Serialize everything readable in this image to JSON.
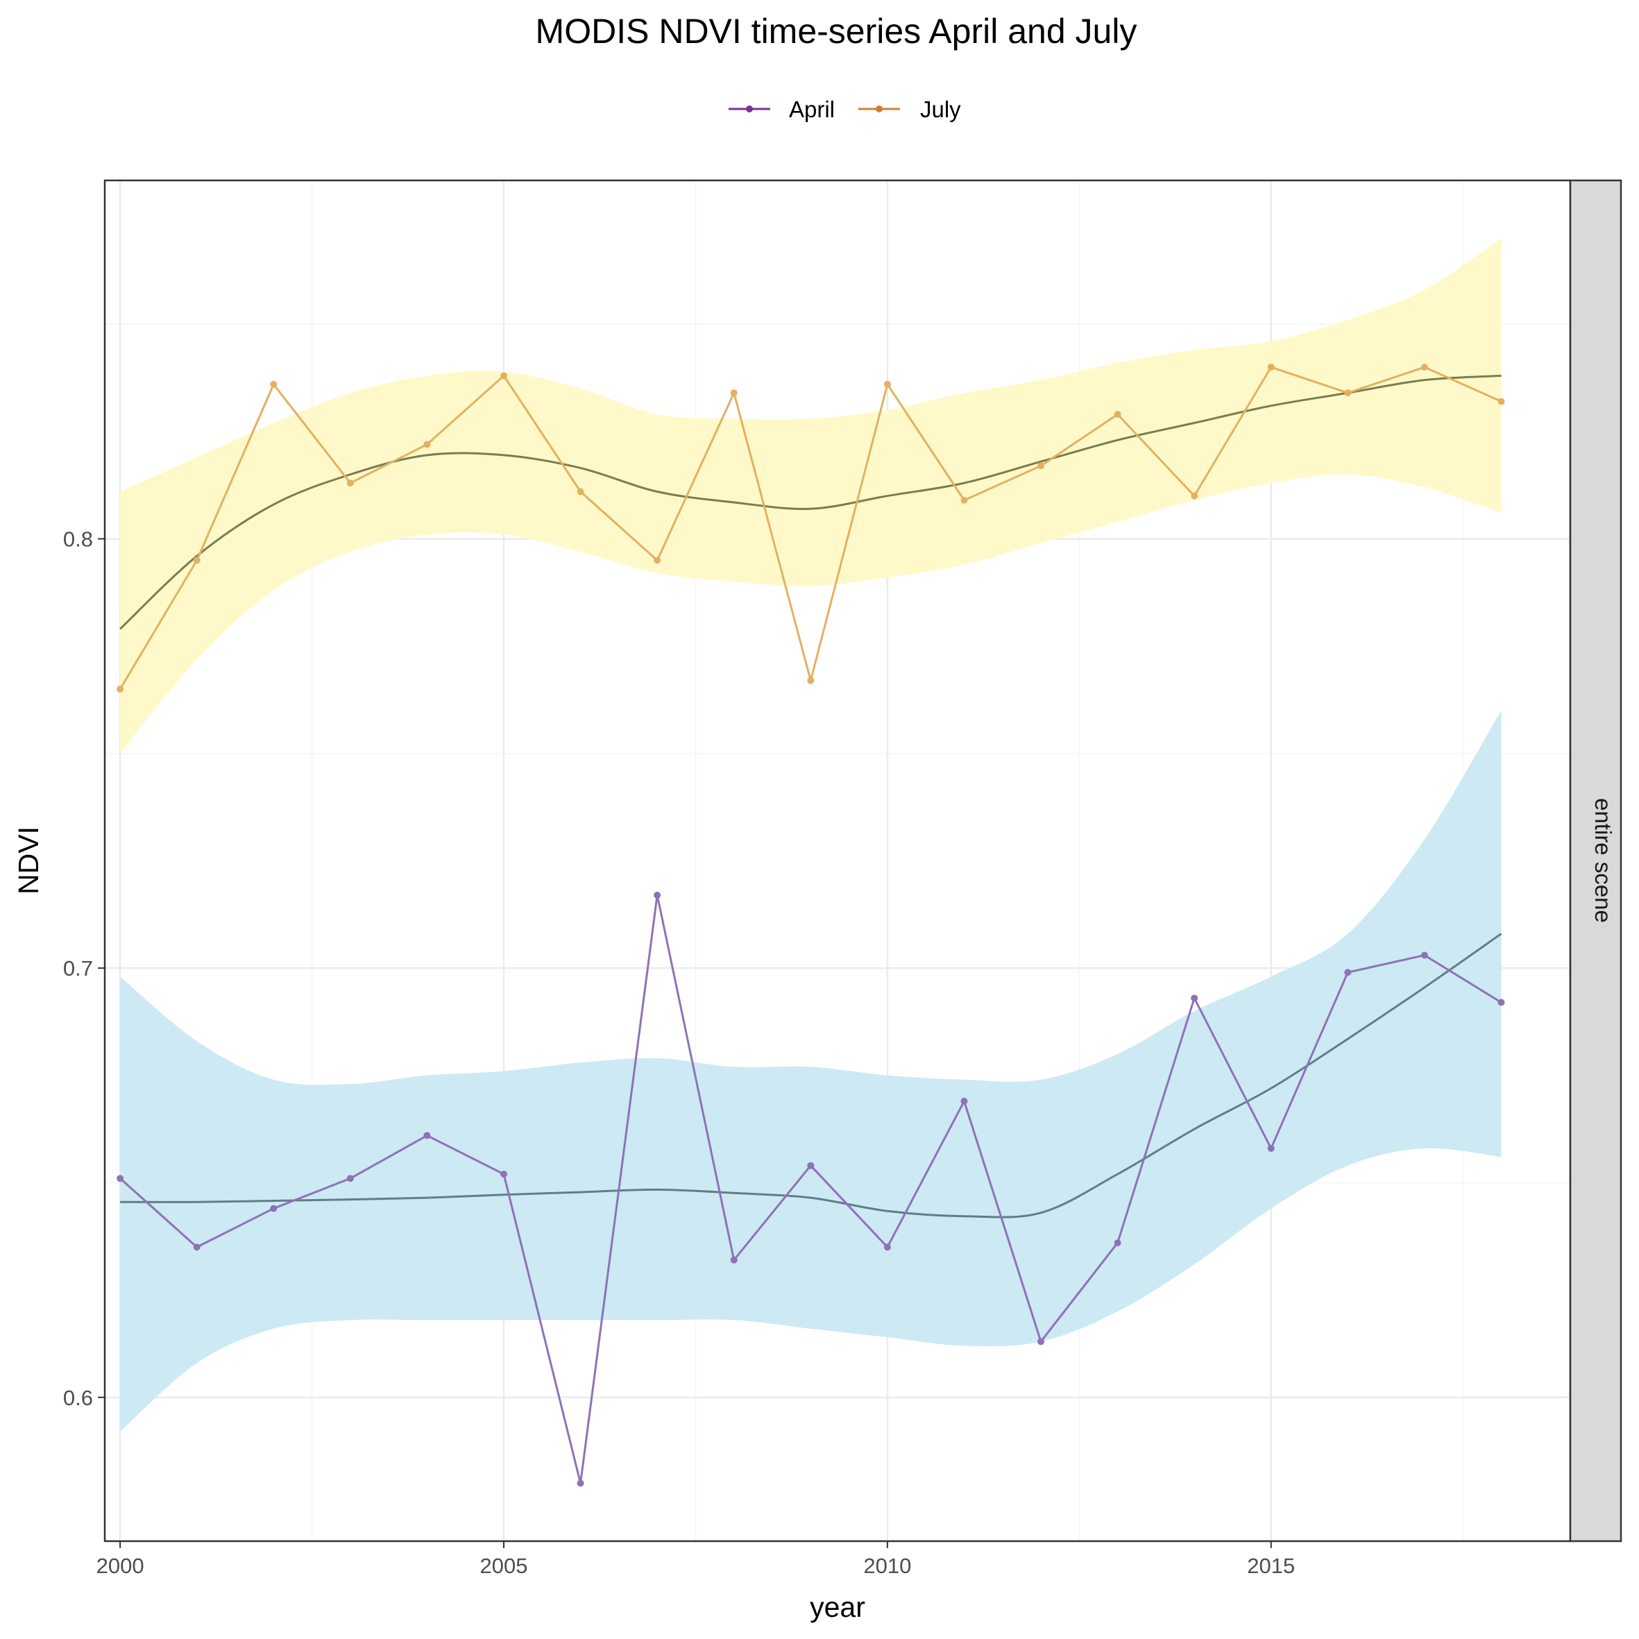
{
  "chart_data": {
    "type": "line",
    "title": "MODIS NDVI time-series April and July",
    "xlabel": "year",
    "ylabel": "NDVI",
    "facet_label": "entire scene",
    "xlim": [
      1999.8,
      2018.9
    ],
    "ylim": [
      0.5665,
      0.8835
    ],
    "x_ticks": [
      2000,
      2005,
      2010,
      2015
    ],
    "x_tick_labels": [
      "2000",
      "2005",
      "2010",
      "2015"
    ],
    "x_minor_ticks": [
      2002.5,
      2007.5,
      2012.5,
      2017.5
    ],
    "y_ticks": [
      0.6,
      0.7,
      0.8
    ],
    "y_tick_labels": [
      "0.6",
      "0.7",
      "0.8"
    ],
    "y_minor_ticks": [
      0.65,
      0.75,
      0.85
    ],
    "grid": true,
    "legend": {
      "position": "top",
      "entries": [
        "April",
        "July"
      ]
    },
    "series": [
      {
        "name": "April",
        "color": "#7b3294",
        "line_color": "#8e72b5",
        "x": [
          2000,
          2001,
          2002,
          2003,
          2004,
          2005,
          2006,
          2007,
          2008,
          2009,
          2010,
          2011,
          2012,
          2013,
          2014,
          2015,
          2016,
          2017,
          2018
        ],
        "values": [
          0.651,
          0.635,
          0.644,
          0.651,
          0.661,
          0.652,
          0.58,
          0.717,
          0.632,
          0.654,
          0.635,
          0.669,
          0.613,
          0.636,
          0.693,
          0.658,
          0.699,
          0.703,
          0.692
        ],
        "smooth": {
          "color": "#5e7f87",
          "x": [
            2000,
            2001,
            2002,
            2003,
            2004,
            2005,
            2006,
            2007,
            2008,
            2009,
            2010,
            2011,
            2012,
            2013,
            2014,
            2015,
            2016,
            2017,
            2018
          ],
          "values": [
            0.6455,
            0.6455,
            0.6458,
            0.6461,
            0.6465,
            0.6472,
            0.6478,
            0.6484,
            0.6476,
            0.6465,
            0.6434,
            0.6422,
            0.643,
            0.652,
            0.6625,
            0.672,
            0.6835,
            0.6955,
            0.708
          ],
          "ci_color": "#cde9f4",
          "ci_lower": [
            0.592,
            0.608,
            0.616,
            0.618,
            0.618,
            0.618,
            0.618,
            0.618,
            0.618,
            0.616,
            0.614,
            0.612,
            0.613,
            0.62,
            0.631,
            0.644,
            0.654,
            0.658,
            0.656
          ],
          "ci_upper": [
            0.698,
            0.683,
            0.674,
            0.673,
            0.675,
            0.676,
            0.678,
            0.679,
            0.677,
            0.677,
            0.675,
            0.674,
            0.674,
            0.68,
            0.69,
            0.698,
            0.708,
            0.73,
            0.76
          ]
        }
      },
      {
        "name": "July",
        "color": "#d07d2e",
        "line_color": "#e3b062",
        "x": [
          2000,
          2001,
          2002,
          2003,
          2004,
          2005,
          2006,
          2007,
          2008,
          2009,
          2010,
          2011,
          2012,
          2013,
          2014,
          2015,
          2016,
          2017,
          2018
        ],
        "values": [
          0.765,
          0.795,
          0.836,
          0.813,
          0.822,
          0.838,
          0.811,
          0.795,
          0.834,
          0.767,
          0.836,
          0.809,
          0.817,
          0.829,
          0.81,
          0.84,
          0.834,
          0.84,
          0.832
        ],
        "smooth": {
          "color": "#7a7d4e",
          "x": [
            2000,
            2001,
            2002,
            2003,
            2004,
            2005,
            2006,
            2007,
            2008,
            2009,
            2010,
            2011,
            2012,
            2013,
            2014,
            2015,
            2016,
            2017,
            2018
          ],
          "values": [
            0.779,
            0.796,
            0.808,
            0.815,
            0.8195,
            0.8195,
            0.8165,
            0.811,
            0.8085,
            0.807,
            0.81,
            0.813,
            0.818,
            0.823,
            0.827,
            0.831,
            0.834,
            0.837,
            0.838
          ],
          "ci_color": "#fff9c9",
          "ci_lower": [
            0.75,
            0.772,
            0.788,
            0.797,
            0.801,
            0.801,
            0.797,
            0.792,
            0.79,
            0.789,
            0.791,
            0.794,
            0.799,
            0.804,
            0.809,
            0.813,
            0.815,
            0.812,
            0.806
          ],
          "ci_upper": [
            0.811,
            0.819,
            0.827,
            0.834,
            0.838,
            0.839,
            0.835,
            0.829,
            0.828,
            0.828,
            0.83,
            0.834,
            0.837,
            0.841,
            0.844,
            0.846,
            0.851,
            0.858,
            0.87
          ]
        }
      }
    ],
    "colors": {
      "panel_border": "#333333",
      "grid_major": "#ebebeb",
      "grid_minor": "#f4f4f4",
      "strip_fill": "#d9d9d9",
      "tick": "#333333"
    }
  }
}
